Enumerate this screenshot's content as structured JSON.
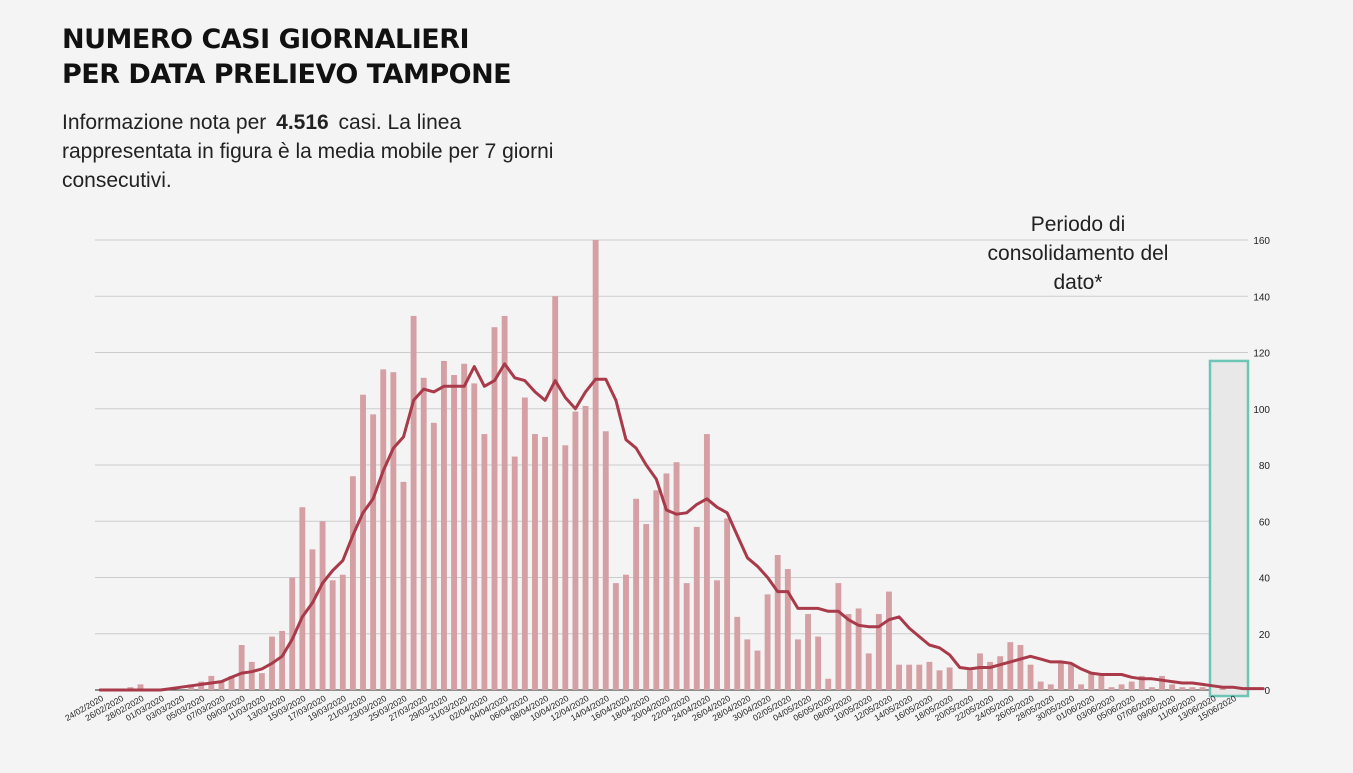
{
  "title_line1": "NUMERO CASI GIORNALIERI",
  "title_line2": "PER DATA PRELIEVO TAMPONE",
  "subtitle_pre": "Informazione nota per",
  "subtitle_count": "4.516",
  "subtitle_post": "casi. La linea rappresentata in figura è la media mobile per 7 giorni consecutivi.",
  "annotation": "Periodo di consolidamento del dato*",
  "colors": {
    "bar": "#d4a0a4",
    "line": "#a83a4a",
    "grid": "#cccccc",
    "zero_line": "#555555",
    "consolidation_border": "#6cc5b5",
    "consolidation_fill": "#e8e8e8"
  },
  "chart_data": {
    "type": "bar",
    "overlay": "line (media mobile 7 giorni)",
    "x_start": "24/02/2020",
    "x_end": "15/06/2020",
    "x_tick_labels": [
      "24/02/2020",
      "26/02/2020",
      "28/02/2020",
      "01/03/2020",
      "03/03/2020",
      "05/03/2020",
      "07/03/2020",
      "09/03/2020",
      "11/03/2020",
      "13/03/2020",
      "15/03/2020",
      "17/03/2020",
      "19/03/2020",
      "21/03/2020",
      "23/03/2020",
      "25/03/2020",
      "27/03/2020",
      "29/03/2020",
      "31/03/2020",
      "02/04/2020",
      "04/04/2020",
      "06/04/2020",
      "08/04/2020",
      "10/04/2020",
      "12/04/2020",
      "14/04/2020",
      "16/04/2020",
      "18/04/2020",
      "20/04/2020",
      "22/04/2020",
      "24/04/2020",
      "26/04/2020",
      "28/04/2020",
      "30/04/2020",
      "02/05/2020",
      "04/05/2020",
      "06/05/2020",
      "08/05/2020",
      "10/05/2020",
      "12/05/2020",
      "14/05/2020",
      "16/05/2020",
      "18/05/2020",
      "20/05/2020",
      "22/05/2020",
      "24/05/2020",
      "26/05/2020",
      "28/05/2020",
      "30/05/2020",
      "01/06/2020",
      "03/06/2020",
      "05/06/2020",
      "07/06/2020",
      "09/06/2020",
      "11/06/2020",
      "13/06/2020",
      "15/06/2020"
    ],
    "y_ticks": [
      0,
      20,
      40,
      60,
      80,
      100,
      120,
      140,
      160
    ],
    "ylim": [
      0,
      160
    ],
    "y_axis_position": "right",
    "grid": true,
    "values": [
      0,
      0,
      0,
      1,
      2,
      0,
      0,
      0,
      0,
      2,
      3,
      5,
      3,
      5,
      16,
      10,
      6,
      19,
      21,
      40,
      65,
      50,
      60,
      39,
      41,
      76,
      105,
      98,
      114,
      113,
      74,
      133,
      111,
      95,
      117,
      112,
      116,
      109,
      91,
      129,
      133,
      83,
      104,
      91,
      90,
      140,
      87,
      99,
      101,
      160,
      92,
      38,
      41,
      68,
      59,
      71,
      77,
      81,
      38,
      58,
      91,
      39,
      61,
      26,
      18,
      14,
      34,
      48,
      43,
      18,
      27,
      19,
      4,
      38,
      27,
      29,
      13,
      27,
      35,
      9,
      9,
      9,
      10,
      7,
      8,
      0,
      7,
      13,
      10,
      12,
      17,
      16,
      9,
      3,
      2,
      10,
      9,
      2,
      6,
      5,
      1,
      2,
      3,
      5,
      1,
      5,
      2,
      1,
      1,
      1,
      0,
      1,
      0,
      0
    ],
    "moving_average": [
      0,
      0,
      0,
      0,
      0,
      0,
      0,
      0.5,
      1,
      1.5,
      2,
      2.5,
      3,
      4.5,
      6,
      6.5,
      7.5,
      9.5,
      12,
      18,
      26,
      31,
      38,
      42.5,
      46,
      55,
      63,
      68,
      78,
      86,
      90,
      103,
      107,
      106,
      108,
      108,
      108,
      115,
      108,
      110,
      116,
      111,
      110,
      106,
      103,
      110,
      104,
      100,
      106,
      110.5,
      110.5,
      103,
      89,
      86,
      80,
      75,
      64,
      62.5,
      63,
      66,
      68,
      65,
      63,
      55,
      47,
      44,
      40,
      35,
      35,
      29,
      29,
      29,
      28,
      28,
      25,
      23,
      22.5,
      22.5,
      25,
      26,
      22,
      19,
      16,
      15,
      12.5,
      8,
      7.5,
      8,
      8,
      9,
      10,
      11,
      12,
      11,
      10,
      10,
      9.5,
      7.5,
      6,
      5.5,
      5.5,
      5.5,
      4.5,
      4,
      4,
      3.5,
      3,
      2.5,
      2.5,
      2,
      1.5,
      1,
      1,
      0.5,
      0.5,
      0.5
    ],
    "consolidation_window": [
      "13/06/2020",
      "15/06/2020"
    ]
  }
}
